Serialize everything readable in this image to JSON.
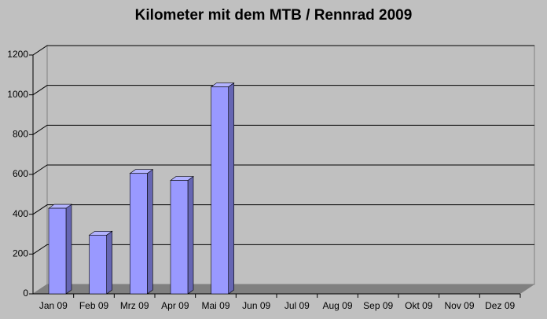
{
  "chart_data": {
    "type": "bar",
    "title": "Kilometer mit dem MTB / Rennrad 2009",
    "categories": [
      "Jan 09",
      "Feb 09",
      "Mrz 09",
      "Apr 09",
      "Mai 09",
      "Jun 09",
      "Jul 09",
      "Aug 09",
      "Sep 09",
      "Okt 09",
      "Nov 09",
      "Dez 09"
    ],
    "values": [
      430,
      295,
      605,
      570,
      1040,
      null,
      null,
      null,
      null,
      null,
      null,
      null
    ],
    "color": "#9999ff",
    "ylim": [
      0,
      1200
    ],
    "yticks": [
      0,
      200,
      400,
      600,
      800,
      1000,
      1200
    ],
    "grid": true
  }
}
